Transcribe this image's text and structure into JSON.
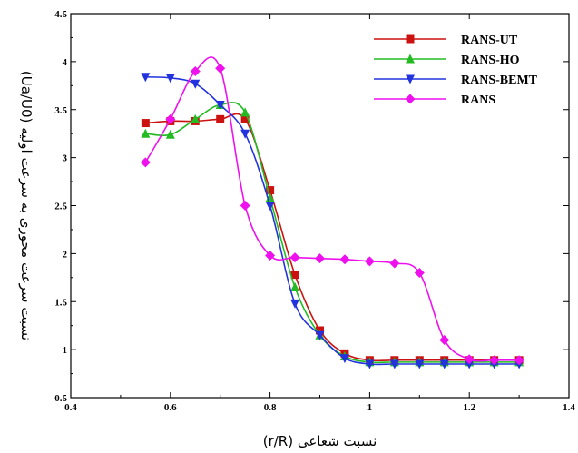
{
  "chart_data": {
    "type": "line",
    "xlabel": "نسبت شعاعی (r/R)",
    "ylabel": "نسبت سرعت محوری به سرعت اولیه (Ua/U0)",
    "xlim": [
      0.4,
      1.4
    ],
    "ylim": [
      0.5,
      4.5
    ],
    "xticks": [
      "0.4",
      "0.6",
      "0.8",
      "1",
      "1.2",
      "1.4"
    ],
    "yticks": [
      "0.5",
      "1",
      "1.5",
      "2",
      "2.5",
      "3",
      "3.5",
      "4",
      "4.5"
    ],
    "grid": false,
    "legend_position": "top-right",
    "series": [
      {
        "name": "RANS-UT",
        "color": "#cc1111",
        "marker": "square",
        "x": [
          0.55,
          0.6,
          0.65,
          0.7,
          0.75,
          0.8,
          0.85,
          0.9,
          0.95,
          1.0,
          1.05,
          1.1,
          1.15,
          1.2,
          1.25,
          1.3
        ],
        "y": [
          3.36,
          3.38,
          3.38,
          3.4,
          3.4,
          2.66,
          1.78,
          1.2,
          0.96,
          0.89,
          0.89,
          0.89,
          0.89,
          0.89,
          0.89,
          0.89
        ]
      },
      {
        "name": "RANS-HO",
        "color": "#22bb22",
        "marker": "triangle-up",
        "x": [
          0.55,
          0.6,
          0.65,
          0.7,
          0.75,
          0.8,
          0.85,
          0.9,
          0.95,
          1.0,
          1.05,
          1.1,
          1.15,
          1.2,
          1.25,
          1.3
        ],
        "y": [
          3.25,
          3.24,
          3.4,
          3.55,
          3.47,
          2.58,
          1.65,
          1.15,
          0.93,
          0.87,
          0.87,
          0.87,
          0.87,
          0.87,
          0.87,
          0.87
        ]
      },
      {
        "name": "RANS-BEMT",
        "color": "#2233dd",
        "marker": "triangle-down",
        "x": [
          0.55,
          0.6,
          0.65,
          0.7,
          0.75,
          0.8,
          0.85,
          0.9,
          0.95,
          1.0,
          1.05,
          1.1,
          1.15,
          1.2,
          1.25,
          1.3
        ],
        "y": [
          3.84,
          3.83,
          3.77,
          3.55,
          3.25,
          2.5,
          1.48,
          1.15,
          0.91,
          0.85,
          0.85,
          0.85,
          0.85,
          0.85,
          0.85,
          0.85
        ]
      },
      {
        "name": "RANS",
        "color": "#ee11ee",
        "marker": "diamond",
        "x": [
          0.55,
          0.6,
          0.65,
          0.7,
          0.75,
          0.8,
          0.85,
          0.9,
          0.95,
          1.0,
          1.05,
          1.1,
          1.15,
          1.2,
          1.25,
          1.3
        ],
        "y": [
          2.95,
          3.4,
          3.9,
          3.93,
          2.5,
          1.98,
          1.96,
          1.95,
          1.94,
          1.92,
          1.9,
          1.8,
          1.1,
          0.9,
          0.89,
          0.89
        ]
      }
    ]
  }
}
